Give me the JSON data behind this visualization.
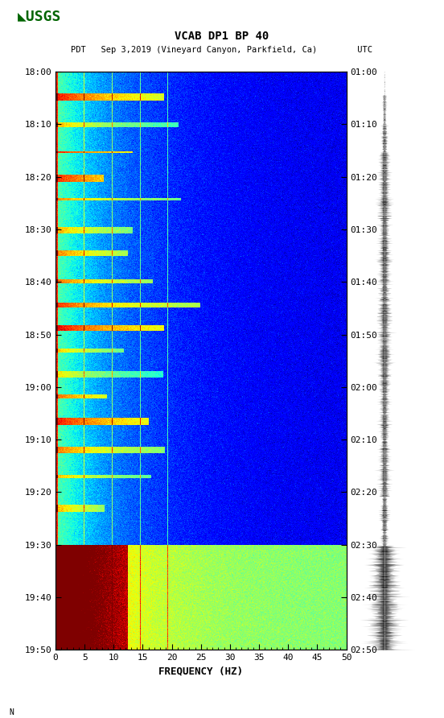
{
  "title_line1": "VCAB DP1 BP 40",
  "title_line2": "PDT   Sep 3,2019 (Vineyard Canyon, Parkfield, Ca)        UTC",
  "xlabel": "FREQUENCY (HZ)",
  "freq_min": 0,
  "freq_max": 50,
  "freq_ticks": [
    0,
    5,
    10,
    15,
    20,
    25,
    30,
    35,
    40,
    45,
    50
  ],
  "pdt_ticks": [
    "18:00",
    "18:10",
    "18:20",
    "18:30",
    "18:40",
    "18:50",
    "19:00",
    "19:10",
    "19:20",
    "19:30",
    "19:40",
    "19:50"
  ],
  "utc_ticks": [
    "01:00",
    "01:10",
    "01:20",
    "01:30",
    "01:40",
    "01:50",
    "02:00",
    "02:10",
    "02:20",
    "02:30",
    "02:40",
    "02:50"
  ],
  "background_color": "#ffffff",
  "spectrogram_cmap": "jet",
  "fig_width": 5.52,
  "fig_height": 8.92,
  "dpi": 100
}
